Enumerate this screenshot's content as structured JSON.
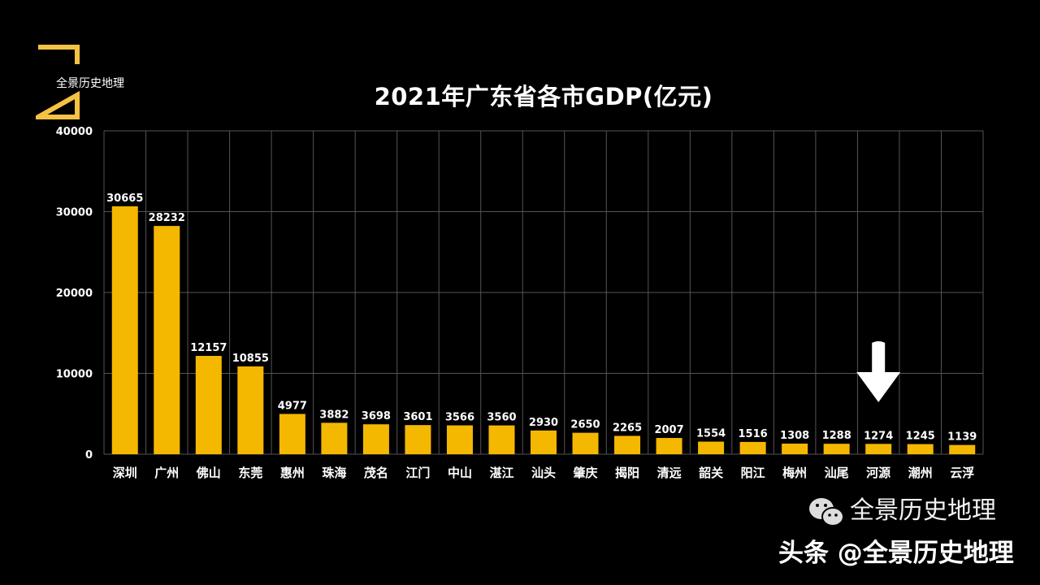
{
  "logo": {
    "text": "全景历史地理",
    "color": "#F5C244"
  },
  "watermark": {
    "platform": "头条",
    "handle": "@全景历史地理",
    "overlay_text": "全景历史地理"
  },
  "colors": {
    "bar": "#F5B800",
    "background": "#000000",
    "grid": "#555555",
    "text": "#FFFFFF"
  },
  "chart_data": {
    "type": "bar",
    "title": "2021年广东省各市GDP(亿元)",
    "xlabel": "",
    "ylabel": "",
    "ylim": [
      0,
      40000
    ],
    "yticks": [
      0,
      10000,
      20000,
      30000,
      40000
    ],
    "grid": true,
    "categories": [
      "深圳",
      "广州",
      "佛山",
      "东莞",
      "惠州",
      "珠海",
      "茂名",
      "江门",
      "中山",
      "湛江",
      "汕头",
      "肇庆",
      "揭阳",
      "清远",
      "韶关",
      "阳江",
      "梅州",
      "汕尾",
      "河源",
      "潮州",
      "云浮"
    ],
    "values": [
      30665,
      28232,
      12157,
      10855,
      4977,
      3882,
      3698,
      3601,
      3566,
      3560,
      2930,
      2650,
      2265,
      2007,
      1554,
      1516,
      1308,
      1288,
      1274,
      1245,
      1139
    ],
    "annotations": [
      {
        "type": "arrow-down",
        "category": "河源"
      }
    ]
  }
}
